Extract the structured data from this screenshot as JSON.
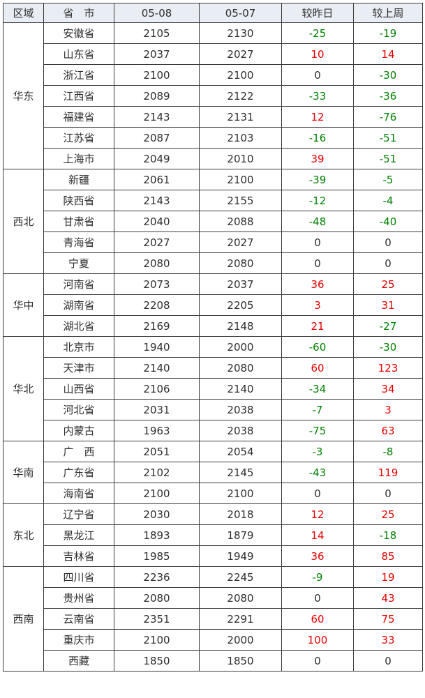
{
  "chart_data": {
    "type": "table",
    "columns": [
      "区域",
      "省　市",
      "05-08",
      "05-07",
      "较昨日",
      "较上周"
    ],
    "regions": [
      {
        "name": "华东",
        "rows": [
          {
            "province": "安徽省",
            "price_0508": 2105,
            "price_0507": 2130,
            "chg_day": -25,
            "chg_week": -19
          },
          {
            "province": "山东省",
            "price_0508": 2037,
            "price_0507": 2027,
            "chg_day": 10,
            "chg_week": 14
          },
          {
            "province": "浙江省",
            "price_0508": 2100,
            "price_0507": 2100,
            "chg_day": 0,
            "chg_week": -30
          },
          {
            "province": "江西省",
            "price_0508": 2089,
            "price_0507": 2122,
            "chg_day": -33,
            "chg_week": -36
          },
          {
            "province": "福建省",
            "price_0508": 2143,
            "price_0507": 2131,
            "chg_day": 12,
            "chg_week": -76
          },
          {
            "province": "江苏省",
            "price_0508": 2087,
            "price_0507": 2103,
            "chg_day": -16,
            "chg_week": -51
          },
          {
            "province": "上海市",
            "price_0508": 2049,
            "price_0507": 2010,
            "chg_day": 39,
            "chg_week": -51
          }
        ]
      },
      {
        "name": "西北",
        "rows": [
          {
            "province": "新疆",
            "price_0508": 2061,
            "price_0507": 2100,
            "chg_day": -39,
            "chg_week": -5
          },
          {
            "province": "陕西省",
            "price_0508": 2143,
            "price_0507": 2155,
            "chg_day": -12,
            "chg_week": -4
          },
          {
            "province": "甘肃省",
            "price_0508": 2040,
            "price_0507": 2088,
            "chg_day": -48,
            "chg_week": -40
          },
          {
            "province": "青海省",
            "price_0508": 2027,
            "price_0507": 2027,
            "chg_day": 0,
            "chg_week": 0
          },
          {
            "province": "宁夏",
            "price_0508": 2080,
            "price_0507": 2080,
            "chg_day": 0,
            "chg_week": 0
          }
        ]
      },
      {
        "name": "华中",
        "rows": [
          {
            "province": "河南省",
            "price_0508": 2073,
            "price_0507": 2037,
            "chg_day": 36,
            "chg_week": 25
          },
          {
            "province": "湖南省",
            "price_0508": 2208,
            "price_0507": 2205,
            "chg_day": 3,
            "chg_week": 31
          },
          {
            "province": "湖北省",
            "price_0508": 2169,
            "price_0507": 2148,
            "chg_day": 21,
            "chg_week": -27
          }
        ]
      },
      {
        "name": "华北",
        "rows": [
          {
            "province": "北京市",
            "price_0508": 1940,
            "price_0507": 2000,
            "chg_day": -60,
            "chg_week": -30
          },
          {
            "province": "天津市",
            "price_0508": 2140,
            "price_0507": 2080,
            "chg_day": 60,
            "chg_week": 123
          },
          {
            "province": "山西省",
            "price_0508": 2106,
            "price_0507": 2140,
            "chg_day": -34,
            "chg_week": 34
          },
          {
            "province": "河北省",
            "price_0508": 2031,
            "price_0507": 2038,
            "chg_day": -7,
            "chg_week": 3
          },
          {
            "province": "内蒙古",
            "price_0508": 1963,
            "price_0507": 2038,
            "chg_day": -75,
            "chg_week": 63
          }
        ]
      },
      {
        "name": "华南",
        "rows": [
          {
            "province": "广　西",
            "price_0508": 2051,
            "price_0507": 2054,
            "chg_day": -3,
            "chg_week": -8
          },
          {
            "province": "广东省",
            "price_0508": 2102,
            "price_0507": 2145,
            "chg_day": -43,
            "chg_week": 119
          },
          {
            "province": "海南省",
            "price_0508": 2100,
            "price_0507": 2100,
            "chg_day": 0,
            "chg_week": 0
          }
        ]
      },
      {
        "name": "东北",
        "rows": [
          {
            "province": "辽宁省",
            "price_0508": 2030,
            "price_0507": 2018,
            "chg_day": 12,
            "chg_week": 25
          },
          {
            "province": "黑龙江",
            "price_0508": 1893,
            "price_0507": 1879,
            "chg_day": 14,
            "chg_week": -18
          },
          {
            "province": "吉林省",
            "price_0508": 1985,
            "price_0507": 1949,
            "chg_day": 36,
            "chg_week": 85
          }
        ]
      },
      {
        "name": "西南",
        "rows": [
          {
            "province": "四川省",
            "price_0508": 2236,
            "price_0507": 2245,
            "chg_day": -9,
            "chg_week": 19
          },
          {
            "province": "贵州省",
            "price_0508": 2080,
            "price_0507": 2080,
            "chg_day": 0,
            "chg_week": 43
          },
          {
            "province": "云南省",
            "price_0508": 2351,
            "price_0507": 2291,
            "chg_day": 60,
            "chg_week": 75
          },
          {
            "province": "重庆市",
            "price_0508": 2100,
            "price_0507": 2000,
            "chg_day": 100,
            "chg_week": 33
          },
          {
            "province": "西藏",
            "price_0508": 1850,
            "price_0507": 1850,
            "chg_day": 0,
            "chg_week": 0
          }
        ]
      }
    ]
  },
  "colors": {
    "positive": "#e60000",
    "negative": "#008000",
    "neutral": "#2e2e2e",
    "header_bg": "#e9eef5",
    "border": "#3a3a3a",
    "background": "#ffffff"
  }
}
